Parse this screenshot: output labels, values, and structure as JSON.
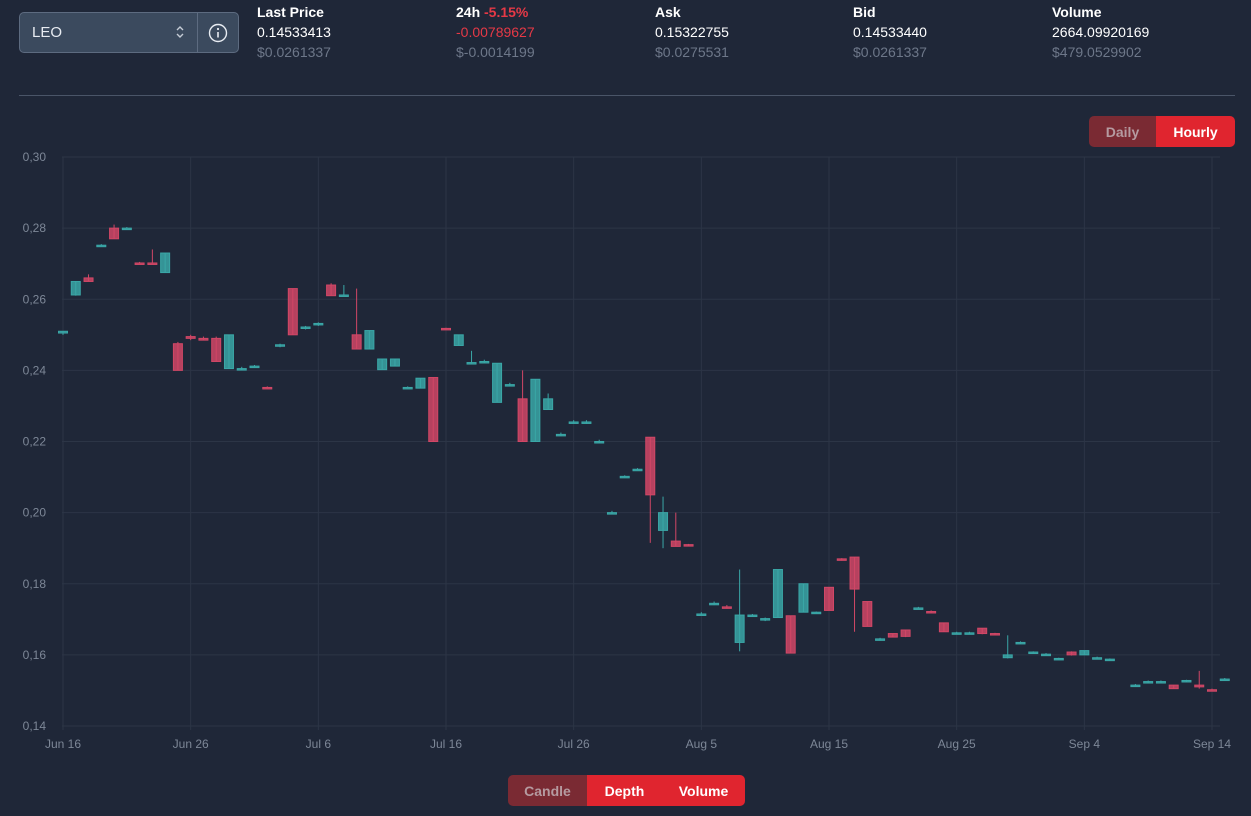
{
  "pair": {
    "selected": "LEO",
    "info_icon": "info-circle-icon",
    "arrows_icon": "chevron-updown-icon"
  },
  "stats": {
    "last_price": {
      "label": "Last Price",
      "value": "0.14533413",
      "usd": "$0.0261337"
    },
    "change_24h": {
      "label": "24h",
      "percent": "-5.15%",
      "value": "-0.00789627",
      "usd": "$-0.0014199"
    },
    "ask": {
      "label": "Ask",
      "value": "0.15322755",
      "usd": "$0.0275531"
    },
    "bid": {
      "label": "Bid",
      "value": "0.14533440",
      "usd": "$0.0261337"
    },
    "volume": {
      "label": "Volume",
      "value": "2664.09920169",
      "usd": "$479.0529902"
    }
  },
  "interval_toggle": {
    "daily": "Daily",
    "hourly": "Hourly",
    "active": "hourly"
  },
  "chart_toggle": {
    "candle": "Candle",
    "depth": "Depth",
    "volume": "Volume",
    "active": [
      "depth",
      "volume"
    ]
  },
  "colors": {
    "up": "#3aa7a7",
    "down": "#d14766",
    "neutral": "#d9dde4",
    "grid": "#2c3546",
    "axis_text": "#7d8797"
  },
  "chart_data": {
    "type": "candlestick",
    "ylim": [
      0.14,
      0.3
    ],
    "yticks": [
      "0,14",
      "0,16",
      "0,18",
      "0,20",
      "0,22",
      "0,24",
      "0,26",
      "0,28",
      "0,30"
    ],
    "ytick_values": [
      0.14,
      0.16,
      0.18,
      0.2,
      0.22,
      0.24,
      0.26,
      0.28,
      0.3
    ],
    "xticks": [
      "Jun 16",
      "Jun 26",
      "Jul 6",
      "Jul 16",
      "Jul 26",
      "Aug 5",
      "Aug 15",
      "Aug 25",
      "Sep 4",
      "Sep 14"
    ],
    "xtick_days": [
      0,
      10,
      20,
      30,
      40,
      50,
      60,
      70,
      80,
      90
    ],
    "candles": [
      {
        "d": 0,
        "o": 0.2505,
        "h": 0.251,
        "l": 0.25,
        "c": 0.251
      },
      {
        "d": 1,
        "o": 0.2612,
        "h": 0.265,
        "l": 0.261,
        "c": 0.265
      },
      {
        "d": 2,
        "o": 0.266,
        "h": 0.267,
        "l": 0.265,
        "c": 0.265
      },
      {
        "d": 3,
        "o": 0.275,
        "h": 0.2755,
        "l": 0.275,
        "c": 0.2752
      },
      {
        "d": 4,
        "o": 0.28,
        "h": 0.281,
        "l": 0.277,
        "c": 0.277
      },
      {
        "d": 5,
        "o": 0.28,
        "h": 0.2803,
        "l": 0.28,
        "c": 0.28
      },
      {
        "d": 6,
        "o": 0.2702,
        "h": 0.2705,
        "l": 0.27,
        "c": 0.27
      },
      {
        "d": 7,
        "o": 0.2702,
        "h": 0.274,
        "l": 0.27,
        "c": 0.27
      },
      {
        "d": 8,
        "o": 0.2675,
        "h": 0.273,
        "l": 0.2675,
        "c": 0.273
      },
      {
        "d": 9,
        "o": 0.2475,
        "h": 0.248,
        "l": 0.24,
        "c": 0.24
      },
      {
        "d": 10,
        "o": 0.2495,
        "h": 0.25,
        "l": 0.2485,
        "c": 0.249
      },
      {
        "d": 11,
        "o": 0.249,
        "h": 0.2495,
        "l": 0.2485,
        "c": 0.2485
      },
      {
        "d": 12,
        "o": 0.249,
        "h": 0.2495,
        "l": 0.2425,
        "c": 0.2425
      },
      {
        "d": 13,
        "o": 0.2405,
        "h": 0.25,
        "l": 0.2405,
        "c": 0.25
      },
      {
        "d": 14,
        "o": 0.2405,
        "h": 0.241,
        "l": 0.24,
        "c": 0.2405
      },
      {
        "d": 15,
        "o": 0.2412,
        "h": 0.2415,
        "l": 0.241,
        "c": 0.2412
      },
      {
        "d": 16,
        "o": 0.2352,
        "h": 0.2355,
        "l": 0.235,
        "c": 0.235
      },
      {
        "d": 17,
        "o": 0.247,
        "h": 0.2475,
        "l": 0.2465,
        "c": 0.2472
      },
      {
        "d": 18,
        "o": 0.263,
        "h": 0.263,
        "l": 0.25,
        "c": 0.25
      },
      {
        "d": 19,
        "o": 0.252,
        "h": 0.2525,
        "l": 0.2515,
        "c": 0.2522
      },
      {
        "d": 20,
        "o": 0.253,
        "h": 0.2535,
        "l": 0.2525,
        "c": 0.2532
      },
      {
        "d": 21,
        "o": 0.264,
        "h": 0.2645,
        "l": 0.261,
        "c": 0.261
      },
      {
        "d": 22,
        "o": 0.261,
        "h": 0.264,
        "l": 0.261,
        "c": 0.2612
      },
      {
        "d": 23,
        "o": 0.25,
        "h": 0.263,
        "l": 0.246,
        "c": 0.246
      },
      {
        "d": 24,
        "o": 0.246,
        "h": 0.2512,
        "l": 0.246,
        "c": 0.2512
      },
      {
        "d": 25,
        "o": 0.2402,
        "h": 0.2432,
        "l": 0.2402,
        "c": 0.2432
      },
      {
        "d": 26,
        "o": 0.2412,
        "h": 0.2432,
        "l": 0.2412,
        "c": 0.2432
      },
      {
        "d": 27,
        "o": 0.2352,
        "h": 0.2355,
        "l": 0.235,
        "c": 0.2352
      },
      {
        "d": 28,
        "o": 0.235,
        "h": 0.2378,
        "l": 0.235,
        "c": 0.2378
      },
      {
        "d": 29,
        "o": 0.238,
        "h": 0.238,
        "l": 0.22,
        "c": 0.22
      },
      {
        "d": 30,
        "o": 0.2518,
        "h": 0.252,
        "l": 0.2515,
        "c": 0.2515
      },
      {
        "d": 31,
        "o": 0.247,
        "h": 0.25,
        "l": 0.247,
        "c": 0.25
      },
      {
        "d": 32,
        "o": 0.2422,
        "h": 0.2455,
        "l": 0.242,
        "c": 0.2422
      },
      {
        "d": 33,
        "o": 0.2425,
        "h": 0.243,
        "l": 0.242,
        "c": 0.2425
      },
      {
        "d": 34,
        "o": 0.231,
        "h": 0.242,
        "l": 0.231,
        "c": 0.242
      },
      {
        "d": 35,
        "o": 0.236,
        "h": 0.2365,
        "l": 0.2355,
        "c": 0.236
      },
      {
        "d": 36,
        "o": 0.232,
        "h": 0.24,
        "l": 0.22,
        "c": 0.22
      },
      {
        "d": 37,
        "o": 0.22,
        "h": 0.2375,
        "l": 0.22,
        "c": 0.2375
      },
      {
        "d": 38,
        "o": 0.229,
        "h": 0.2335,
        "l": 0.229,
        "c": 0.232
      },
      {
        "d": 39,
        "o": 0.222,
        "h": 0.2225,
        "l": 0.2215,
        "c": 0.222
      },
      {
        "d": 40,
        "o": 0.2255,
        "h": 0.226,
        "l": 0.225,
        "c": 0.2255
      },
      {
        "d": 41,
        "o": 0.2255,
        "h": 0.226,
        "l": 0.225,
        "c": 0.2255
      },
      {
        "d": 42,
        "o": 0.22,
        "h": 0.2205,
        "l": 0.2195,
        "c": 0.22
      },
      {
        "d": 43,
        "o": 0.2,
        "h": 0.2005,
        "l": 0.1995,
        "c": 0.2
      },
      {
        "d": 44,
        "o": 0.2102,
        "h": 0.2105,
        "l": 0.21,
        "c": 0.2102
      },
      {
        "d": 45,
        "o": 0.2122,
        "h": 0.2125,
        "l": 0.212,
        "c": 0.2122
      },
      {
        "d": 46,
        "o": 0.2212,
        "h": 0.2212,
        "l": 0.1915,
        "c": 0.205
      },
      {
        "d": 47,
        "o": 0.195,
        "h": 0.2045,
        "l": 0.19,
        "c": 0.2
      },
      {
        "d": 48,
        "o": 0.192,
        "h": 0.2,
        "l": 0.1905,
        "c": 0.1905
      },
      {
        "d": 49,
        "o": 0.191,
        "h": 0.1912,
        "l": 0.1905,
        "c": 0.1908
      },
      {
        "d": 50,
        "o": 0.1715,
        "h": 0.172,
        "l": 0.171,
        "c": 0.1715
      },
      {
        "d": 51,
        "o": 0.1745,
        "h": 0.175,
        "l": 0.174,
        "c": 0.1745
      },
      {
        "d": 52,
        "o": 0.1735,
        "h": 0.174,
        "l": 0.173,
        "c": 0.1732
      },
      {
        "d": 53,
        "o": 0.1635,
        "h": 0.184,
        "l": 0.161,
        "c": 0.1712
      },
      {
        "d": 54,
        "o": 0.1712,
        "h": 0.1715,
        "l": 0.1708,
        "c": 0.1712
      },
      {
        "d": 55,
        "o": 0.17,
        "h": 0.1705,
        "l": 0.1695,
        "c": 0.1702
      },
      {
        "d": 56,
        "o": 0.1705,
        "h": 0.184,
        "l": 0.1705,
        "c": 0.184
      },
      {
        "d": 57,
        "o": 0.171,
        "h": 0.171,
        "l": 0.1605,
        "c": 0.1605
      },
      {
        "d": 58,
        "o": 0.172,
        "h": 0.18,
        "l": 0.172,
        "c": 0.18
      },
      {
        "d": 59,
        "o": 0.172,
        "h": 0.1722,
        "l": 0.1718,
        "c": 0.172
      },
      {
        "d": 60,
        "o": 0.179,
        "h": 0.179,
        "l": 0.1725,
        "c": 0.1725
      },
      {
        "d": 61,
        "o": 0.187,
        "h": 0.1872,
        "l": 0.1865,
        "c": 0.1868
      },
      {
        "d": 62,
        "o": 0.1875,
        "h": 0.1875,
        "l": 0.1665,
        "c": 0.1785
      },
      {
        "d": 63,
        "o": 0.175,
        "h": 0.175,
        "l": 0.168,
        "c": 0.168
      },
      {
        "d": 64,
        "o": 0.1645,
        "h": 0.1648,
        "l": 0.164,
        "c": 0.1645
      },
      {
        "d": 65,
        "o": 0.166,
        "h": 0.166,
        "l": 0.165,
        "c": 0.165
      },
      {
        "d": 66,
        "o": 0.167,
        "h": 0.167,
        "l": 0.165,
        "c": 0.1652
      },
      {
        "d": 67,
        "o": 0.1732,
        "h": 0.1735,
        "l": 0.173,
        "c": 0.1732
      },
      {
        "d": 68,
        "o": 0.1722,
        "h": 0.1725,
        "l": 0.1718,
        "c": 0.172
      },
      {
        "d": 69,
        "o": 0.169,
        "h": 0.169,
        "l": 0.1665,
        "c": 0.1665
      },
      {
        "d": 70,
        "o": 0.1662,
        "h": 0.1665,
        "l": 0.1658,
        "c": 0.1662
      },
      {
        "d": 71,
        "o": 0.1662,
        "h": 0.1665,
        "l": 0.1658,
        "c": 0.1662
      },
      {
        "d": 72,
        "o": 0.1675,
        "h": 0.1675,
        "l": 0.1658,
        "c": 0.166
      },
      {
        "d": 73,
        "o": 0.166,
        "h": 0.1662,
        "l": 0.1656,
        "c": 0.1658
      },
      {
        "d": 74,
        "o": 0.1592,
        "h": 0.1655,
        "l": 0.159,
        "c": 0.16
      },
      {
        "d": 75,
        "o": 0.1635,
        "h": 0.1638,
        "l": 0.1632,
        "c": 0.1635
      },
      {
        "d": 76,
        "o": 0.1608,
        "h": 0.161,
        "l": 0.1605,
        "c": 0.1608
      },
      {
        "d": 77,
        "o": 0.1602,
        "h": 0.1605,
        "l": 0.16,
        "c": 0.1602
      },
      {
        "d": 78,
        "o": 0.159,
        "h": 0.1592,
        "l": 0.1588,
        "c": 0.159
      },
      {
        "d": 79,
        "o": 0.1608,
        "h": 0.161,
        "l": 0.1598,
        "c": 0.16
      },
      {
        "d": 80,
        "o": 0.16,
        "h": 0.1612,
        "l": 0.16,
        "c": 0.1612
      },
      {
        "d": 81,
        "o": 0.1592,
        "h": 0.1595,
        "l": 0.159,
        "c": 0.1592
      },
      {
        "d": 82,
        "o": 0.1588,
        "h": 0.159,
        "l": 0.1585,
        "c": 0.1588
      },
      {
        "d": 84,
        "o": 0.1515,
        "h": 0.1518,
        "l": 0.1512,
        "c": 0.1515
      },
      {
        "d": 85,
        "o": 0.1525,
        "h": 0.1528,
        "l": 0.1522,
        "c": 0.1525
      },
      {
        "d": 86,
        "o": 0.1525,
        "h": 0.1528,
        "l": 0.1522,
        "c": 0.1525
      },
      {
        "d": 87,
        "o": 0.1515,
        "h": 0.1515,
        "l": 0.1505,
        "c": 0.1505
      },
      {
        "d": 88,
        "o": 0.1528,
        "h": 0.153,
        "l": 0.1525,
        "c": 0.1528
      },
      {
        "d": 89,
        "o": 0.1515,
        "h": 0.1555,
        "l": 0.1505,
        "c": 0.151
      },
      {
        "d": 90,
        "o": 0.1502,
        "h": 0.1505,
        "l": 0.15,
        "c": 0.15
      },
      {
        "d": 91,
        "o": 0.1532,
        "h": 0.1535,
        "l": 0.153,
        "c": 0.1532
      }
    ]
  }
}
